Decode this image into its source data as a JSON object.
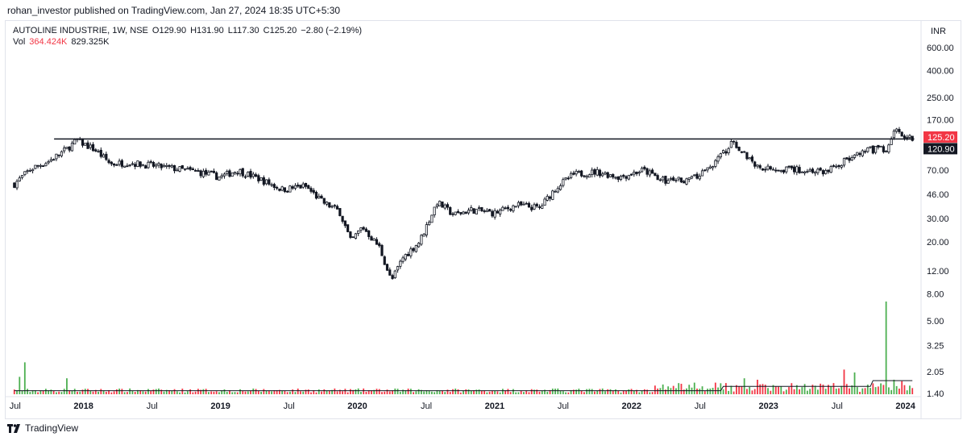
{
  "header": {
    "publisher_line": "rohan_investor published on TradingView.com, Jan 27, 2024 18:35 UTC+5:30"
  },
  "legend": {
    "symbol": "AUTOLINE INDUSTRIE, 1W, NSE",
    "open": "O129.90",
    "high": "H131.90",
    "low": "L117.30",
    "close": "C125.20",
    "change": "−2.80 (−2.19%)",
    "vol_label": "Vol",
    "vol_value": "364.424K",
    "vol_ma": "829.325K"
  },
  "footer": {
    "brand": "TradingView"
  },
  "colors": {
    "up": "#26a69a",
    "down": "#ef5350",
    "candle": "#131722",
    "vol_up": "#4caf50",
    "vol_down": "#f23645",
    "price_label": "#f23645",
    "line_label": "#131722"
  },
  "chart_data": {
    "type": "candlestick",
    "currency": "INR",
    "y_scale": "log",
    "price_ticks": [
      "600.00",
      "400.00",
      "250.00",
      "170.00",
      "125.20",
      "120.90",
      "70.00",
      "46.00",
      "30.00",
      "20.00",
      "12.00",
      "8.00",
      "5.00",
      "3.25",
      "2.05",
      "1.40"
    ],
    "tick_values": [
      600,
      400,
      250,
      170,
      70,
      46,
      30,
      20,
      12,
      8,
      5,
      3.25,
      2.05,
      1.4
    ],
    "current_price": {
      "value": 125.2,
      "label": "125.20"
    },
    "horizontal_line": {
      "value": 120.9,
      "label": "120.90"
    },
    "x_labels": [
      "Jul",
      "2018",
      "Jul",
      "2019",
      "Jul",
      "2020",
      "Jul",
      "2021",
      "Jul",
      "2022",
      "Jul",
      "2023",
      "Jul",
      "2024"
    ],
    "price_path": [
      {
        "d": "2017-07-01",
        "p": 55
      },
      {
        "d": "2017-08-15",
        "p": 72
      },
      {
        "d": "2017-10-01",
        "p": 82
      },
      {
        "d": "2017-11-15",
        "p": 100
      },
      {
        "d": "2017-12-15",
        "p": 118
      },
      {
        "d": "2018-02-01",
        "p": 100
      },
      {
        "d": "2018-03-15",
        "p": 78
      },
      {
        "d": "2018-05-01",
        "p": 80
      },
      {
        "d": "2018-07-01",
        "p": 76
      },
      {
        "d": "2018-09-01",
        "p": 72
      },
      {
        "d": "2018-11-01",
        "p": 68
      },
      {
        "d": "2019-01-01",
        "p": 62
      },
      {
        "d": "2019-02-15",
        "p": 70
      },
      {
        "d": "2019-04-15",
        "p": 60
      },
      {
        "d": "2019-06-15",
        "p": 50
      },
      {
        "d": "2019-08-15",
        "p": 53
      },
      {
        "d": "2019-10-01",
        "p": 40
      },
      {
        "d": "2019-11-15",
        "p": 34
      },
      {
        "d": "2019-12-15",
        "p": 20
      },
      {
        "d": "2020-01-15",
        "p": 26
      },
      {
        "d": "2020-03-01",
        "p": 18
      },
      {
        "d": "2020-04-01",
        "p": 10
      },
      {
        "d": "2020-05-01",
        "p": 15
      },
      {
        "d": "2020-06-15",
        "p": 20
      },
      {
        "d": "2020-08-01",
        "p": 40
      },
      {
        "d": "2020-09-15",
        "p": 32
      },
      {
        "d": "2020-11-01",
        "p": 35
      },
      {
        "d": "2021-01-01",
        "p": 33
      },
      {
        "d": "2021-03-01",
        "p": 38
      },
      {
        "d": "2021-05-01",
        "p": 36
      },
      {
        "d": "2021-06-15",
        "p": 52
      },
      {
        "d": "2021-08-01",
        "p": 65
      },
      {
        "d": "2021-10-01",
        "p": 68
      },
      {
        "d": "2021-12-01",
        "p": 62
      },
      {
        "d": "2022-02-01",
        "p": 70
      },
      {
        "d": "2022-04-01",
        "p": 58
      },
      {
        "d": "2022-06-15",
        "p": 60
      },
      {
        "d": "2022-08-01",
        "p": 75
      },
      {
        "d": "2022-10-01",
        "p": 115
      },
      {
        "d": "2022-12-01",
        "p": 75
      },
      {
        "d": "2023-02-01",
        "p": 72
      },
      {
        "d": "2023-04-01",
        "p": 70
      },
      {
        "d": "2023-06-01",
        "p": 68
      },
      {
        "d": "2023-08-01",
        "p": 85
      },
      {
        "d": "2023-10-01",
        "p": 100
      },
      {
        "d": "2023-11-15",
        "p": 102
      },
      {
        "d": "2023-12-01",
        "p": 140
      },
      {
        "d": "2024-01-20",
        "p": 125
      }
    ],
    "volume_spikes": [
      {
        "d": "2017-07-15",
        "v": 0.6,
        "up": true
      },
      {
        "d": "2017-08-01",
        "v": 1.1,
        "up": true
      },
      {
        "d": "2017-11-20",
        "v": 0.55,
        "up": true
      },
      {
        "d": "2022-06-15",
        "v": 0.4,
        "up": true
      },
      {
        "d": "2022-08-10",
        "v": 0.4,
        "up": false
      },
      {
        "d": "2022-11-01",
        "v": 0.55,
        "up": true
      },
      {
        "d": "2022-12-01",
        "v": 0.5,
        "up": false
      },
      {
        "d": "2023-07-20",
        "v": 0.85,
        "up": false
      },
      {
        "d": "2023-08-20",
        "v": 0.75,
        "up": true
      },
      {
        "d": "2023-11-10",
        "v": 3.2,
        "up": true
      },
      {
        "d": "2023-12-01",
        "v": 0.5,
        "up": true
      },
      {
        "d": "2023-12-20",
        "v": 0.45,
        "up": false
      }
    ]
  }
}
